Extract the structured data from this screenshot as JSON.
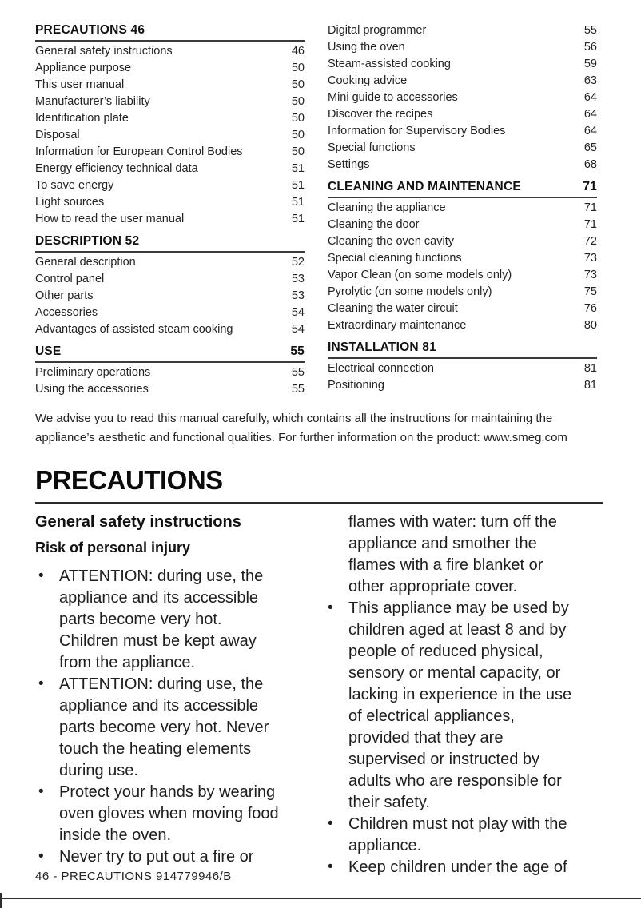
{
  "colors": {
    "ink": "#1c1c1c",
    "rule": "#3a3a3a"
  },
  "page": {
    "footer": "46 - PRECAUTIONS 914779946/B"
  },
  "toc": {
    "columns": [
      {
        "blocks": [
          {
            "header": {
              "title": "PRECAUTIONS 46",
              "page": ""
            },
            "entries": [
              {
                "label": "General safety instructions",
                "page": "46"
              },
              {
                "label": "Appliance purpose",
                "page": "50"
              },
              {
                "label": "This user manual",
                "page": "50"
              },
              {
                "label": "Manufacturer’s liability",
                "page": "50"
              },
              {
                "label": "Identification plate",
                "page": "50"
              },
              {
                "label": "Disposal",
                "page": "50"
              },
              {
                "label": "Information for European Control Bodies",
                "page": "50"
              },
              {
                "label": "Energy efficiency technical data",
                "page": "51"
              },
              {
                "label": "To save energy",
                "page": "51"
              },
              {
                "label": "Light sources",
                "page": "51"
              },
              {
                "label": "How to read the user manual",
                "page": "51"
              }
            ]
          },
          {
            "header": {
              "title": "DESCRIPTION 52",
              "page": ""
            },
            "entries": [
              {
                "label": "General description",
                "page": "52"
              },
              {
                "label": "Control panel",
                "page": "53"
              },
              {
                "label": "Other parts",
                "page": "53"
              },
              {
                "label": "Accessories",
                "page": "54"
              },
              {
                "label": "Advantages of assisted steam cooking",
                "page": "54"
              }
            ]
          },
          {
            "header": {
              "title": "USE",
              "page": "55"
            },
            "entries": [
              {
                "label": "Preliminary operations",
                "page": "55"
              },
              {
                "label": "Using the accessories",
                "page": "55"
              }
            ]
          }
        ]
      },
      {
        "blocks": [
          {
            "header": null,
            "entries": [
              {
                "label": "Digital programmer",
                "page": "55"
              },
              {
                "label": "Using the oven",
                "page": "56"
              },
              {
                "label": "Steam-assisted cooking",
                "page": "59"
              },
              {
                "label": "Cooking advice",
                "page": "63"
              },
              {
                "label": "Mini guide to accessories",
                "page": "64"
              },
              {
                "label": "Discover the recipes",
                "page": "64"
              },
              {
                "label": "Information for Supervisory Bodies",
                "page": "64"
              },
              {
                "label": "Special functions",
                "page": "65"
              },
              {
                "label": "Settings",
                "page": "68"
              }
            ]
          },
          {
            "header": {
              "title": "CLEANING AND MAINTENANCE",
              "page": "71"
            },
            "entries": [
              {
                "label": "Cleaning the appliance",
                "page": "71"
              },
              {
                "label": "Cleaning the door",
                "page": "71"
              },
              {
                "label": "Cleaning the oven cavity",
                "page": "72"
              },
              {
                "label": "Special cleaning functions",
                "page": "73"
              },
              {
                "label": "Vapor Clean (on some models only)",
                "page": "73"
              },
              {
                "label": "Pyrolytic (on some models only)",
                "page": "75"
              },
              {
                "label": "Cleaning the water circuit",
                "page": "76"
              },
              {
                "label": "Extraordinary maintenance",
                "page": "80"
              }
            ]
          },
          {
            "header": {
              "title": "INSTALLATION 81",
              "page": ""
            },
            "entries": [
              {
                "label": "Electrical connection",
                "page": "81"
              },
              {
                "label": "Positioning",
                "page": "81"
              }
            ]
          }
        ]
      }
    ]
  },
  "advisory": "We advise you to read this manual carefully, which contains all the instructions for maintaining the\nappliance’s aesthetic and functional qualities. For further information on the product: www.smeg.com",
  "main": {
    "title": "PRECAUTIONS",
    "columns": [
      {
        "heading": "General safety instructions",
        "subheading": "Risk of personal injury",
        "items": [
          {
            "bullet": true,
            "lines": [
              "ATTENTION: during use, the",
              "appliance and its accessible",
              "parts become very hot.",
              "Children must be kept away",
              "from the appliance."
            ]
          },
          {
            "bullet": true,
            "lines": [
              "ATTENTION: during use, the",
              "appliance and its accessible",
              "parts become very hot. Never",
              "touch the heating elements",
              "during use."
            ]
          },
          {
            "bullet": true,
            "lines": [
              "Protect your hands by wearing",
              "oven gloves when moving food",
              "inside the oven."
            ]
          },
          {
            "bullet": true,
            "lines": [
              "Never try to put out a fire or"
            ]
          }
        ]
      },
      {
        "heading": "",
        "subheading": "",
        "items": [
          {
            "bullet": false,
            "lines": [
              "flames with water: turn off the",
              "appliance and smother the",
              "flames with a fire blanket or",
              "other appropriate cover."
            ]
          },
          {
            "bullet": true,
            "lines": [
              "This appliance may be used by",
              "children aged at least 8 and by",
              "people of reduced physical,",
              "sensory or mental capacity, or",
              "lacking in experience in the use",
              "of electrical appliances,",
              "provided that they are",
              "supervised or instructed by",
              "adults who are responsible for",
              "their safety."
            ]
          },
          {
            "bullet": true,
            "lines": [
              "Children must not play with the",
              "appliance."
            ]
          },
          {
            "bullet": true,
            "lines": [
              "Keep children under the age of"
            ]
          }
        ]
      }
    ]
  }
}
